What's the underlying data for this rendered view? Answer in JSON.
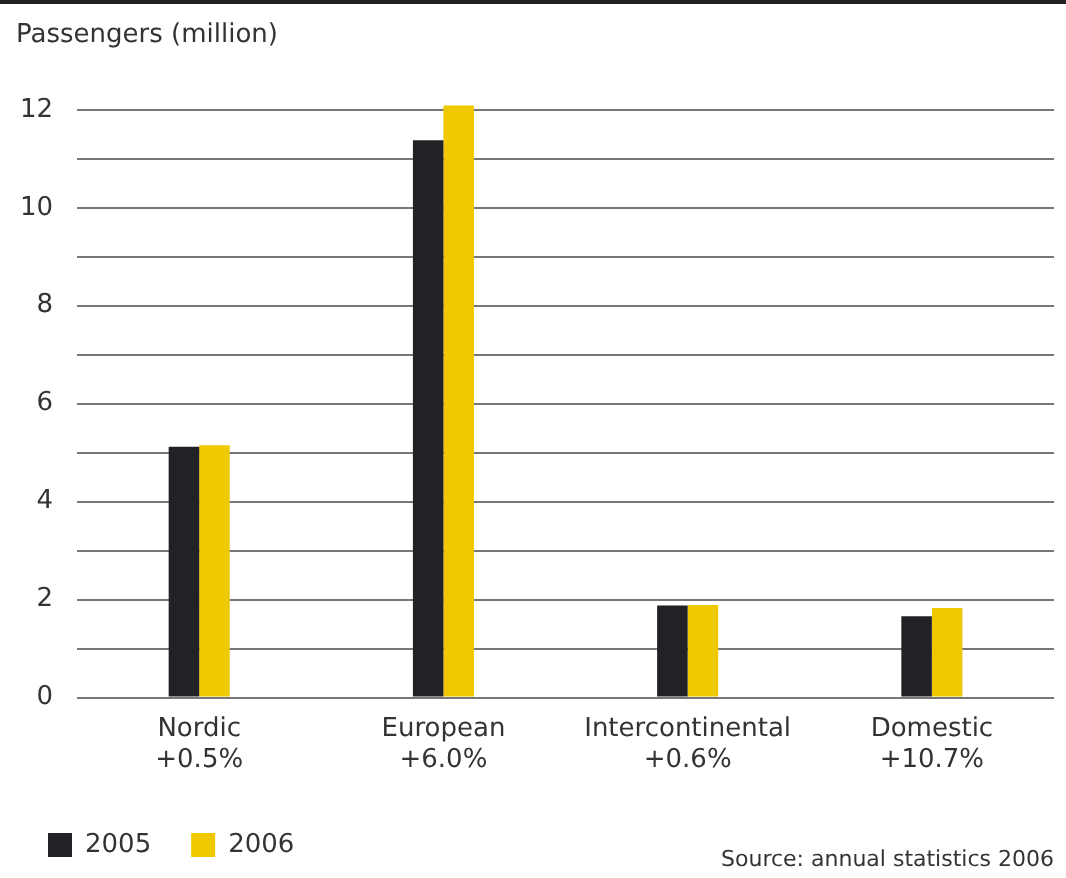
{
  "chart_data": {
    "type": "bar",
    "ylabel": "Passengers (million)",
    "categories": [
      "Nordic\n+0.5%",
      "European\n+6.0%",
      "Intercontinental\n+0.6%",
      "Domestic\n+10.7%"
    ],
    "series": [
      {
        "name": "2005",
        "color": "#222226",
        "values": [
          5.12,
          11.38,
          1.88,
          1.66
        ]
      },
      {
        "name": "2006",
        "color": "#f0c800",
        "values": [
          5.15,
          12.09,
          1.89,
          1.83
        ]
      }
    ],
    "ylim": [
      0,
      12.2
    ],
    "yticks": [
      0,
      {
        "value": 1,
        "label": null
      },
      2,
      {
        "value": 3,
        "label": null
      },
      4,
      {
        "value": 5,
        "label": null
      },
      6,
      {
        "value": 7,
        "label": null
      },
      8,
      {
        "value": 9,
        "label": null
      },
      10,
      {
        "value": 11,
        "label": null
      },
      12
    ],
    "grid": "y",
    "legend": "bottom left",
    "annotations": [
      "Source: annual statistics 2006"
    ]
  }
}
